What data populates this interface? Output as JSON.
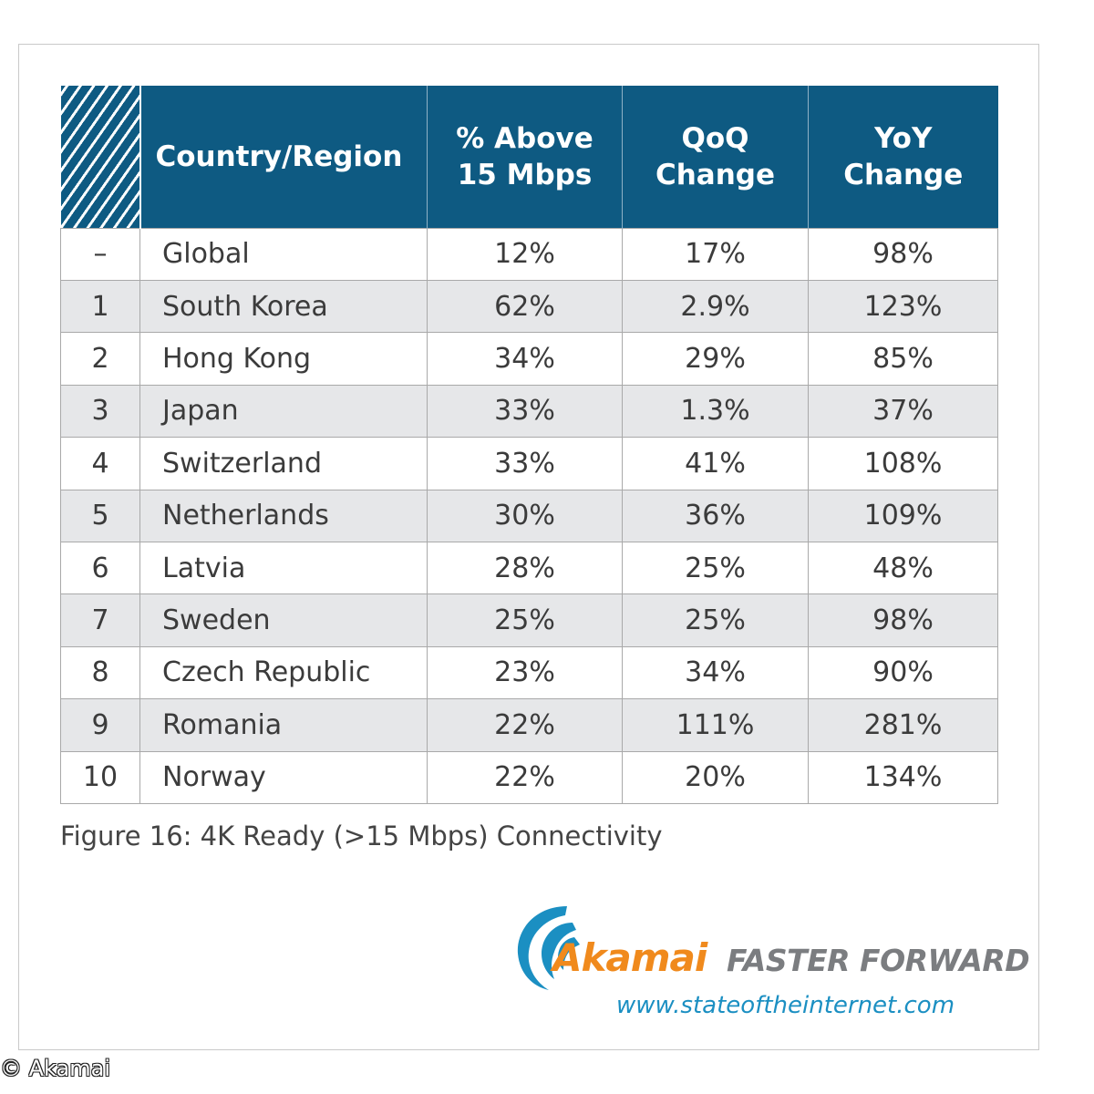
{
  "table": {
    "headers": [
      "Country/Region",
      "% Above 15 Mbps",
      "QoQ Change",
      "YoY Change"
    ],
    "rows": [
      {
        "rank": "–",
        "country": "Global",
        "above15": "12%",
        "qoq": "17%",
        "yoy": "98%"
      },
      {
        "rank": "1",
        "country": "South Korea",
        "above15": "62%",
        "qoq": "2.9%",
        "yoy": "123%"
      },
      {
        "rank": "2",
        "country": "Hong Kong",
        "above15": "34%",
        "qoq": "29%",
        "yoy": "85%"
      },
      {
        "rank": "3",
        "country": "Japan",
        "above15": "33%",
        "qoq": "1.3%",
        "yoy": "37%"
      },
      {
        "rank": "4",
        "country": "Switzerland",
        "above15": "33%",
        "qoq": "41%",
        "yoy": "108%"
      },
      {
        "rank": "5",
        "country": "Netherlands",
        "above15": "30%",
        "qoq": "36%",
        "yoy": "109%"
      },
      {
        "rank": "6",
        "country": "Latvia",
        "above15": "28%",
        "qoq": "25%",
        "yoy": "48%"
      },
      {
        "rank": "7",
        "country": "Sweden",
        "above15": "25%",
        "qoq": "25%",
        "yoy": "98%"
      },
      {
        "rank": "8",
        "country": "Czech Republic",
        "above15": "23%",
        "qoq": "34%",
        "yoy": "90%"
      },
      {
        "rank": "9",
        "country": "Romania",
        "above15": "22%",
        "qoq": "111%",
        "yoy": "281%"
      },
      {
        "rank": "10",
        "country": "Norway",
        "above15": "22%",
        "qoq": "20%",
        "yoy": "134%"
      }
    ]
  },
  "caption": "Figure 16: 4K Ready (>15 Mbps) Connectivity",
  "branding": {
    "logo_word": "Akamai",
    "tagline": "FASTER FORWARD",
    "url": "www.stateoftheinternet.com",
    "logo_icon": "akamai-swoosh-icon"
  },
  "copyright": "© Akamai",
  "colors": {
    "header_bg": "#0e5a82",
    "stripe_bg": "#e6e7e9",
    "brand_orange": "#f08a1d",
    "url_blue": "#1b8fc2"
  }
}
